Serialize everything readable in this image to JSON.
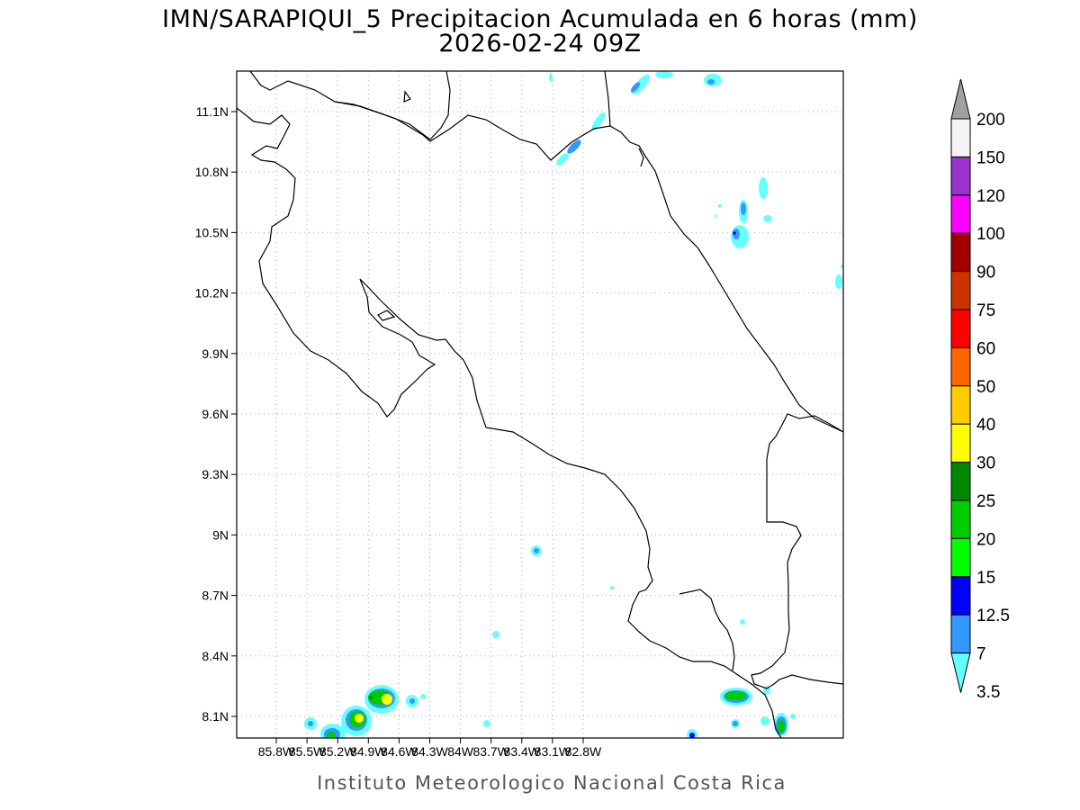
{
  "header": {
    "title_line1": "IMN/SARAPIQUI_5 Precipitacion Acumulada en 6 horas (mm)",
    "title_line2": "2026-02-24 09Z"
  },
  "footer": {
    "credit": "Instituto Meteorologico Nacional Costa Rica"
  },
  "axes": {
    "x_ticks": [
      "85.8W",
      "85.5W",
      "85.2W",
      "84.9W",
      "84.6W",
      "84.3W",
      "84W",
      "83.7W",
      "83.4W",
      "83.1W",
      "82.8W"
    ],
    "y_ticks": [
      "11.1N",
      "10.8N",
      "10.5N",
      "10.2N",
      "9.9N",
      "9.6N",
      "9.3N",
      "9N",
      "8.7N",
      "8.4N",
      "8.1N"
    ],
    "grid": "dotted"
  },
  "legend": {
    "units": "mm",
    "levels": [
      {
        "label": "200",
        "color": "#a0a0a0"
      },
      {
        "label": "150",
        "color": "#f4f4f4"
      },
      {
        "label": "120",
        "color": "#9933cc"
      },
      {
        "label": "100",
        "color": "#ff00ff"
      },
      {
        "label": "90",
        "color": "#a00000"
      },
      {
        "label": "75",
        "color": "#cc3300"
      },
      {
        "label": "60",
        "color": "#ff0000"
      },
      {
        "label": "50",
        "color": "#ff6600"
      },
      {
        "label": "40",
        "color": "#ffcc00"
      },
      {
        "label": "30",
        "color": "#ffff00"
      },
      {
        "label": "25",
        "color": "#008800"
      },
      {
        "label": "20",
        "color": "#00cc00"
      },
      {
        "label": "15",
        "color": "#00ff00"
      },
      {
        "label": "12.5",
        "color": "#0000ff"
      },
      {
        "label": "7",
        "color": "#3399ff"
      },
      {
        "label": "3.5",
        "color": "#66ffff"
      }
    ]
  }
}
